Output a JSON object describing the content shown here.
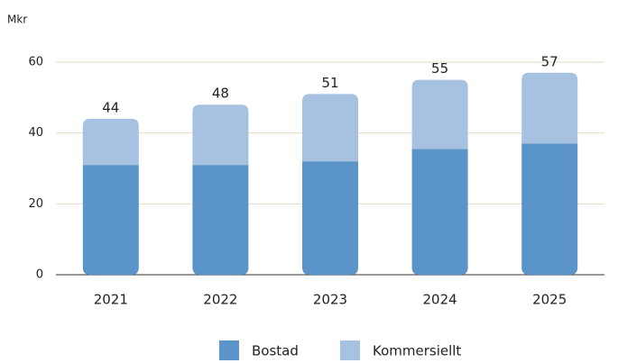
{
  "chart_data": {
    "type": "stacked_bar",
    "y_axis_label": "Mkr",
    "categories": [
      "2021",
      "2022",
      "2023",
      "2024",
      "2025"
    ],
    "series": [
      {
        "name": "Bostad",
        "color": "#5b94c8",
        "values": [
          31,
          31,
          32,
          35.5,
          37
        ]
      },
      {
        "name": "Kommersiellt",
        "color": "#a7c1e0",
        "values": [
          13,
          17,
          19,
          19.5,
          20
        ]
      }
    ],
    "totals": [
      44,
      48,
      51,
      55,
      57
    ],
    "ylim": [
      0,
      60
    ],
    "yticks": [
      0,
      20,
      40,
      60
    ],
    "grid": true
  }
}
